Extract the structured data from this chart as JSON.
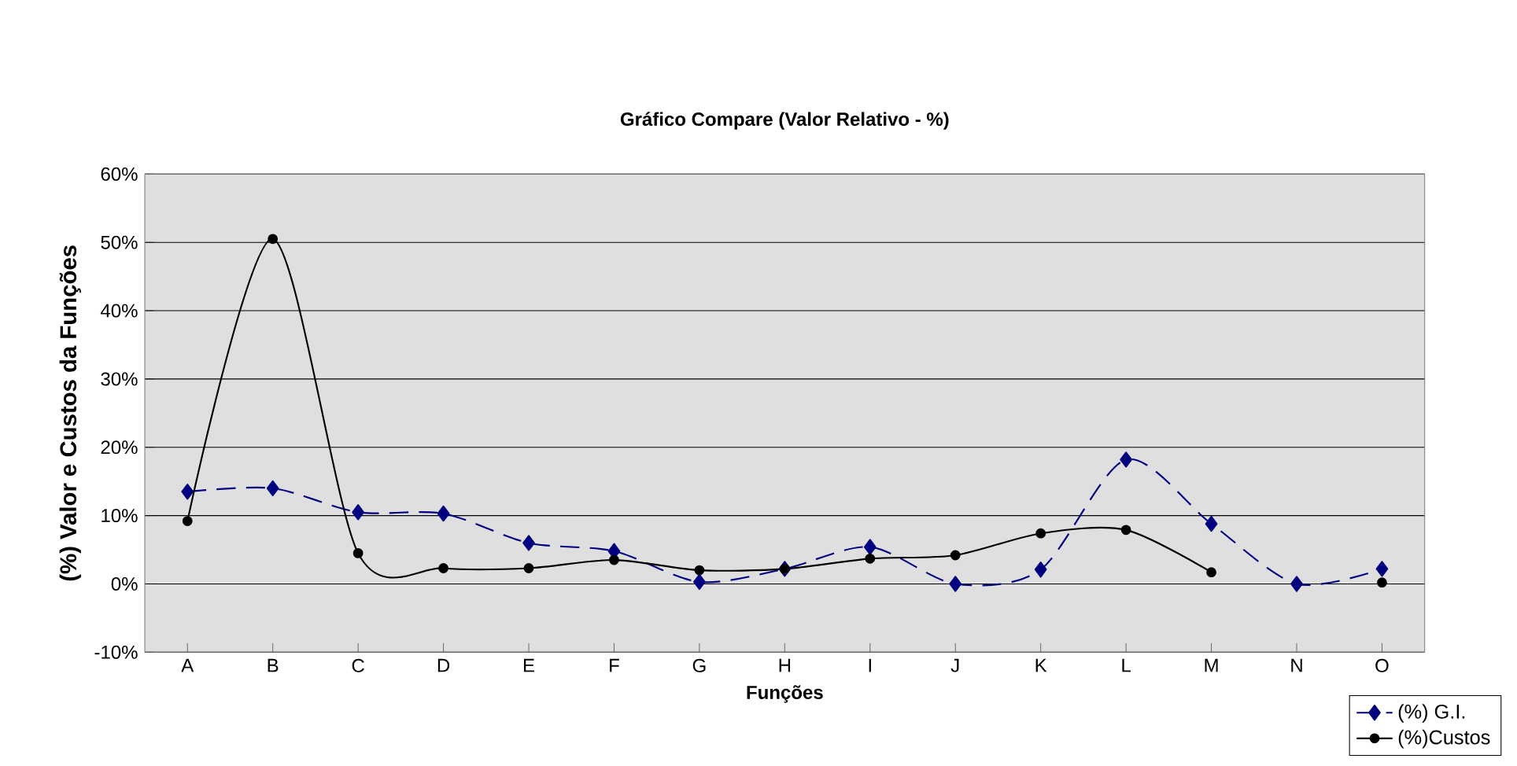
{
  "chart_data": {
    "type": "line",
    "title": "Gráfico Compare (Valor Relativo - %)",
    "xlabel": "Funções",
    "ylabel": "(%) Valor e Custos da Funções",
    "categories": [
      "A",
      "B",
      "C",
      "D",
      "E",
      "F",
      "G",
      "H",
      "I",
      "J",
      "K",
      "L",
      "M",
      "N",
      "O"
    ],
    "series": [
      {
        "name": "(%) G.I.",
        "color": "#000080",
        "marker": "diamond",
        "line_style": "dashed",
        "values": [
          13.5,
          14,
          10.5,
          10.3,
          6,
          4.8,
          0.3,
          2.2,
          5.4,
          0,
          2.1,
          18.2,
          8.8,
          0,
          2.2
        ]
      },
      {
        "name": "(%)Custos",
        "color": "#000000",
        "marker": "circle",
        "line_style": "solid",
        "values": [
          9.2,
          50.5,
          4.5,
          2.3,
          2.3,
          3.5,
          2,
          2.2,
          3.7,
          4.2,
          7.4,
          7.9,
          1.7,
          null,
          0.2
        ]
      }
    ],
    "ylim": [
      -10,
      60
    ],
    "yticks": [
      {
        "value": -10,
        "label": "-10%"
      },
      {
        "value": 0,
        "label": "0%"
      },
      {
        "value": 10,
        "label": "10%"
      },
      {
        "value": 20,
        "label": "20%"
      },
      {
        "value": 30,
        "label": "30%"
      },
      {
        "value": 40,
        "label": "40%"
      },
      {
        "value": 50,
        "label": "50%"
      },
      {
        "value": 60,
        "label": "60%"
      }
    ],
    "grid": "y",
    "legend": "bottom right"
  }
}
